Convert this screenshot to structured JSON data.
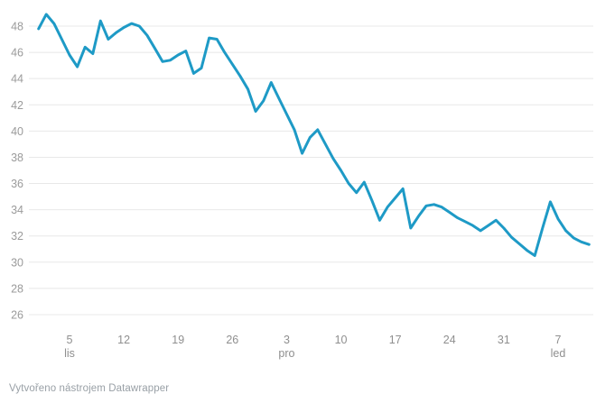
{
  "page": {
    "background": "#ffffff"
  },
  "footer": {
    "attribution": "Vytvořeno nástrojem Datawrapper"
  },
  "chart_data": {
    "type": "line",
    "title": "",
    "xlabel": "",
    "ylabel": "",
    "legend": "none",
    "grid": "horizontal-only",
    "line_color": "#1e9ac6",
    "grid_color": "#e8e8e8",
    "y_label_color": "#9b9b9b",
    "x_label_color": "#8f8f8f",
    "ylim": [
      26,
      49
    ],
    "yticks": [
      26,
      28,
      30,
      32,
      34,
      36,
      38,
      40,
      42,
      44,
      46,
      48
    ],
    "xticks": [
      {
        "index": 4,
        "label": "5",
        "month": "lis"
      },
      {
        "index": 11,
        "label": "12",
        "month": ""
      },
      {
        "index": 18,
        "label": "19",
        "month": ""
      },
      {
        "index": 25,
        "label": "26",
        "month": ""
      },
      {
        "index": 32,
        "label": "3",
        "month": "pro"
      },
      {
        "index": 39,
        "label": "10",
        "month": ""
      },
      {
        "index": 46,
        "label": "17",
        "month": ""
      },
      {
        "index": 53,
        "label": "24",
        "month": ""
      },
      {
        "index": 60,
        "label": "31",
        "month": ""
      },
      {
        "index": 67,
        "label": "7",
        "month": "led"
      }
    ],
    "x_description": "daily points, one per day; tick indices mark 5 lis (Nov 5) through 7 led (Jan 7), weekly",
    "values": [
      47.8,
      48.9,
      48.2,
      47.0,
      45.8,
      44.9,
      46.4,
      45.9,
      48.4,
      47.0,
      47.5,
      47.9,
      48.2,
      48.0,
      47.3,
      46.3,
      45.3,
      45.4,
      45.8,
      46.1,
      44.4,
      44.8,
      47.1,
      47.0,
      46.0,
      45.1,
      44.2,
      43.2,
      41.5,
      42.3,
      43.7,
      42.5,
      41.3,
      40.1,
      38.3,
      39.5,
      40.1,
      39.0,
      37.9,
      37.0,
      36.0,
      35.3,
      36.1,
      34.7,
      33.2,
      34.2,
      34.9,
      35.6,
      32.6,
      33.5,
      34.3,
      34.4,
      34.2,
      33.8,
      33.4,
      33.1,
      32.8,
      32.4,
      32.8,
      33.2,
      32.6,
      31.9,
      31.4,
      30.9,
      30.5,
      32.6,
      34.6,
      33.3,
      32.4,
      31.85,
      31.55,
      31.35
    ]
  }
}
